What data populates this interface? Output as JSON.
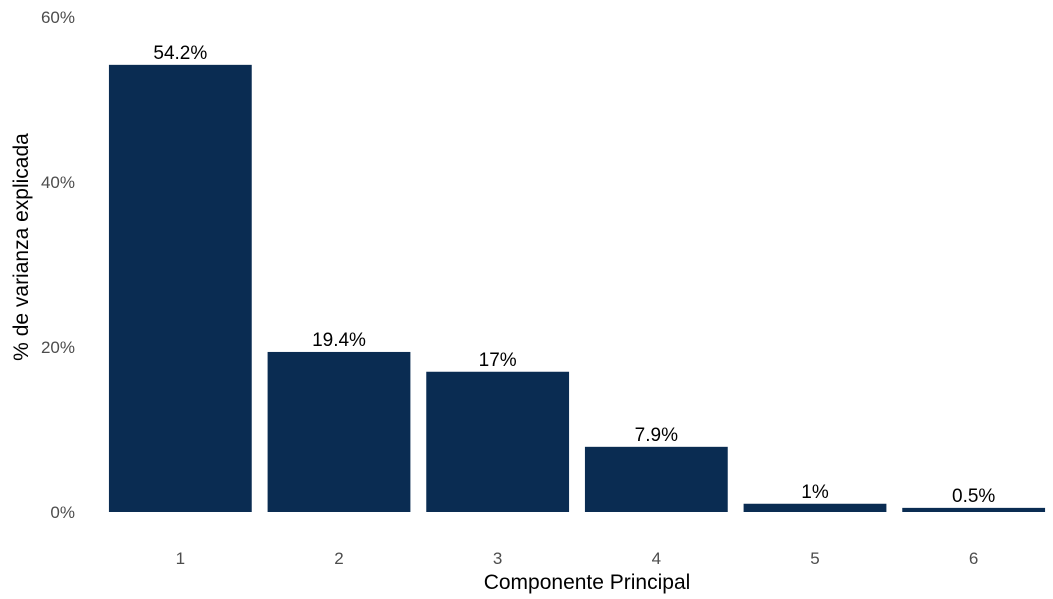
{
  "chart_data": {
    "type": "bar",
    "title": "",
    "xlabel": "Componente Principal",
    "ylabel": "% de varianza explicada",
    "categories": [
      "1",
      "2",
      "3",
      "4",
      "5",
      "6"
    ],
    "values": [
      54.2,
      19.4,
      17,
      7.9,
      1,
      0.5
    ],
    "value_labels": [
      "54.2%",
      "19.4%",
      "17%",
      "7.9%",
      "1%",
      "0.5%"
    ],
    "ylim": [
      0,
      60
    ],
    "y_ticks": [
      0,
      20,
      40,
      60
    ],
    "y_tick_labels": [
      "0%",
      "20%",
      "40%",
      "60%"
    ],
    "grid": false,
    "legend": "none",
    "bar_color": "#0a2c52"
  }
}
